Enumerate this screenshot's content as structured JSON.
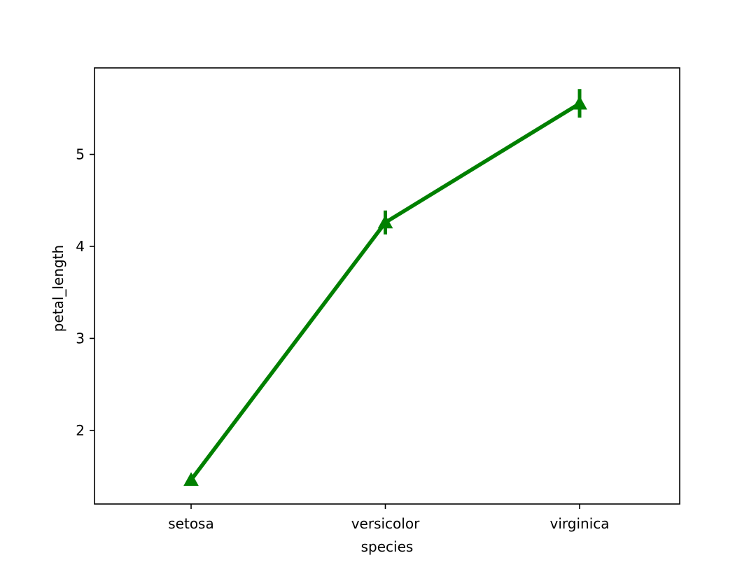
{
  "chart_data": {
    "type": "line",
    "title": "",
    "xlabel": "species",
    "ylabel": "petal_length",
    "categories": [
      "setosa",
      "versicolor",
      "virginica"
    ],
    "series": [
      {
        "values": [
          1.462,
          4.26,
          5.552
        ],
        "ci_low": [
          1.41,
          4.13,
          5.4
        ],
        "ci_high": [
          1.51,
          4.39,
          5.71
        ],
        "color": "#008000",
        "marker": "triangle"
      }
    ],
    "y_ticks": [
      2,
      3,
      4,
      5
    ],
    "ylim": [
      1.2,
      5.94
    ],
    "grid": false,
    "legend": "none"
  }
}
